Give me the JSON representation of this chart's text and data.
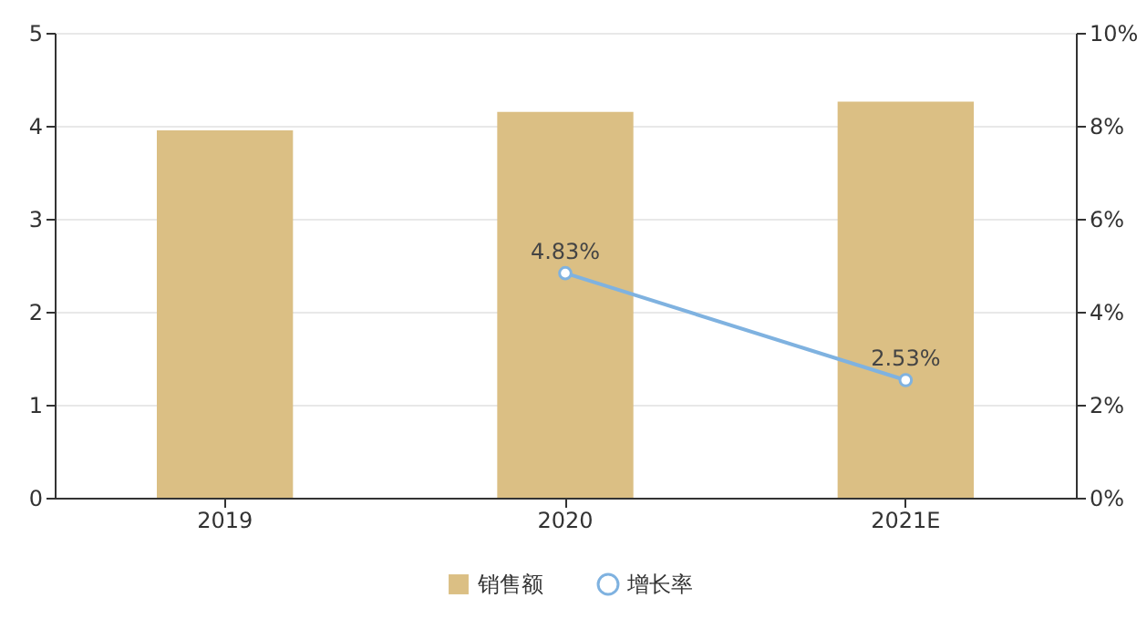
{
  "chart_data": {
    "type": "bar",
    "categories": [
      "2019",
      "2020",
      "2021E"
    ],
    "series": [
      {
        "name": "销售额",
        "color": "#dbbf84",
        "values": [
          3.95,
          4.15,
          4.26
        ]
      },
      {
        "name": "增长率",
        "type": "line",
        "axis": "y2",
        "color": "#7fb2e0",
        "values": [
          null,
          4.83,
          2.53
        ],
        "value_labels": [
          null,
          "4.83%",
          "2.53%"
        ]
      }
    ],
    "ylim": [
      0,
      5
    ],
    "yticks": [
      0,
      1,
      2,
      3,
      4,
      5
    ],
    "y2lim": [
      0,
      10
    ],
    "y2ticks": [
      {
        "value": 0,
        "label": "0%"
      },
      {
        "value": 2,
        "label": "2%"
      },
      {
        "value": 4,
        "label": "4%"
      },
      {
        "value": 6,
        "label": "6%"
      },
      {
        "value": 8,
        "label": "8%"
      },
      {
        "value": 10,
        "label": "10%"
      }
    ],
    "grid": "y",
    "legend": "bottom",
    "marker": "circle",
    "line_style": "solid"
  }
}
